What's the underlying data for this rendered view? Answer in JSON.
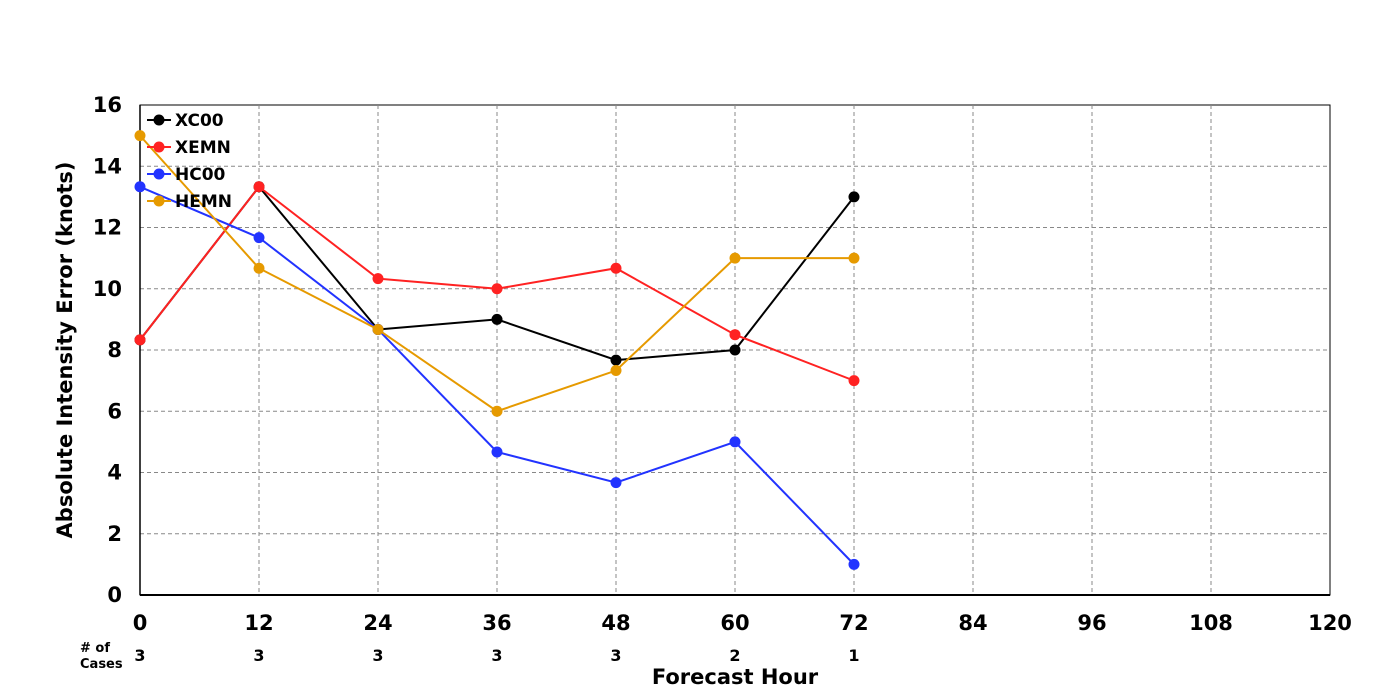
{
  "chart_data": {
    "type": "line",
    "xlabel": "Forecast Hour",
    "ylabel": "Absolute Intensity Error (knots)",
    "xlim": [
      0,
      120
    ],
    "ylim": [
      0,
      16
    ],
    "x_ticks": [
      "0",
      "12",
      "24",
      "36",
      "48",
      "60",
      "72",
      "84",
      "96",
      "108",
      "120"
    ],
    "y_ticks": [
      "0",
      "2",
      "4",
      "6",
      "8",
      "10",
      "12",
      "14",
      "16"
    ],
    "grid": true,
    "legend_position": "top-left",
    "cases_label_line1": "# of",
    "cases_label_line2": "Cases",
    "cases": [
      {
        "x": 0,
        "label": "3"
      },
      {
        "x": 12,
        "label": "3"
      },
      {
        "x": 24,
        "label": "3"
      },
      {
        "x": 36,
        "label": "3"
      },
      {
        "x": 48,
        "label": "3"
      },
      {
        "x": 60,
        "label": "2"
      },
      {
        "x": 72,
        "label": "1"
      }
    ],
    "series": [
      {
        "name": "XC00",
        "color": "#000000",
        "x": [
          0,
          12,
          24,
          36,
          48,
          60,
          72
        ],
        "values": [
          8.33,
          13.33,
          8.67,
          9.0,
          7.67,
          8.0,
          13.0
        ]
      },
      {
        "name": "XEMN",
        "color": "#ff2222",
        "x": [
          0,
          12,
          24,
          36,
          48,
          60,
          72
        ],
        "values": [
          8.33,
          13.33,
          10.33,
          10.0,
          10.67,
          8.5,
          7.0
        ]
      },
      {
        "name": "HC00",
        "color": "#2233ff",
        "x": [
          0,
          12,
          24,
          36,
          48,
          60,
          72
        ],
        "values": [
          13.33,
          11.67,
          8.67,
          4.67,
          3.67,
          5.0,
          1.0
        ]
      },
      {
        "name": "HEMN",
        "color": "#e69a00",
        "x": [
          0,
          12,
          24,
          36,
          48,
          60,
          72
        ],
        "values": [
          15.0,
          10.67,
          8.67,
          6.0,
          7.33,
          11.0,
          11.0
        ]
      }
    ]
  }
}
